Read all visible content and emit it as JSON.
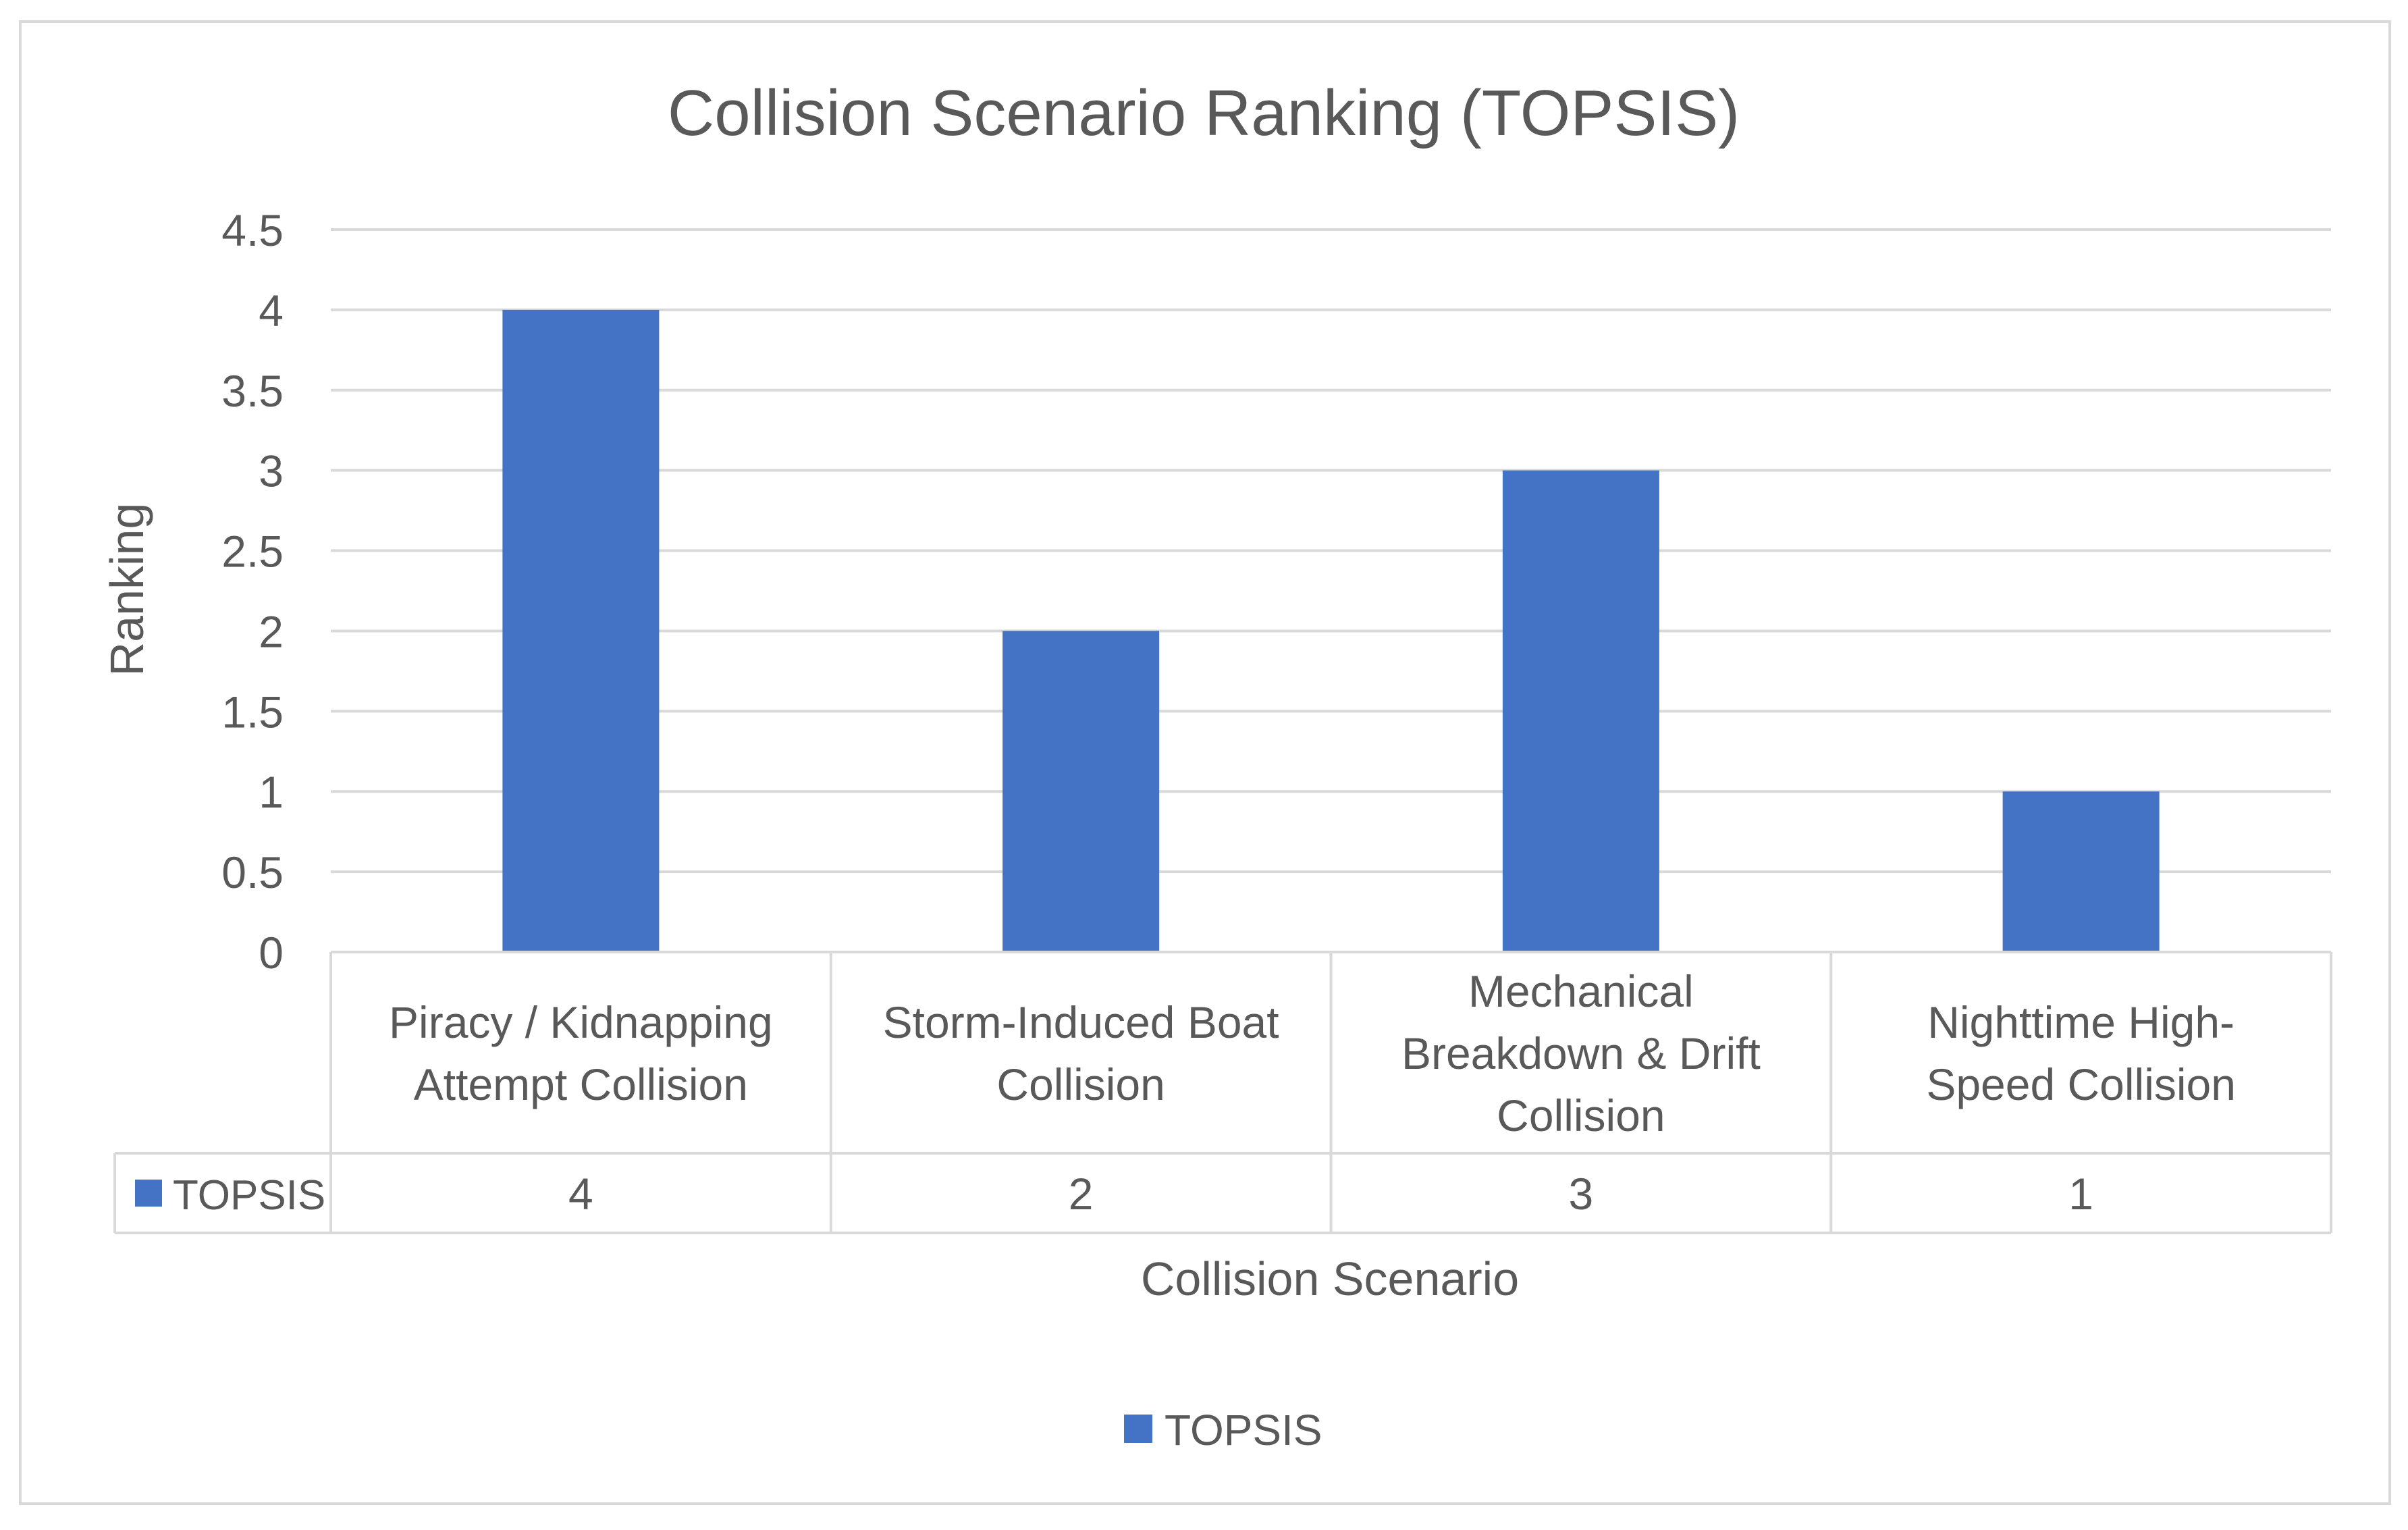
{
  "chart_data": {
    "type": "bar",
    "title": "Collision Scenario Ranking (TOPSIS)",
    "xlabel": "Collision Scenario",
    "ylabel": "Ranking",
    "ylim": [
      0,
      4.5
    ],
    "ytick_step": 0.5,
    "yticks": [
      "0",
      "0.5",
      "1",
      "1.5",
      "2",
      "2.5",
      "3",
      "3.5",
      "4",
      "4.5"
    ],
    "grid": true,
    "legend_position": "bottom-center",
    "categories": [
      [
        "Piracy / Kidnapping",
        "Attempt Collision"
      ],
      [
        "Storm-Induced Boat",
        "Collision"
      ],
      [
        "Mechanical",
        "Breakdown & Drift",
        "Collision"
      ],
      [
        "Nighttime High-",
        "Speed Collision"
      ]
    ],
    "series": [
      {
        "name": "TOPSIS",
        "color": "#4472C4",
        "values": [
          4,
          2,
          3,
          1
        ],
        "value_labels": [
          "4",
          "2",
          "3",
          "1"
        ]
      }
    ],
    "data_table": true
  }
}
